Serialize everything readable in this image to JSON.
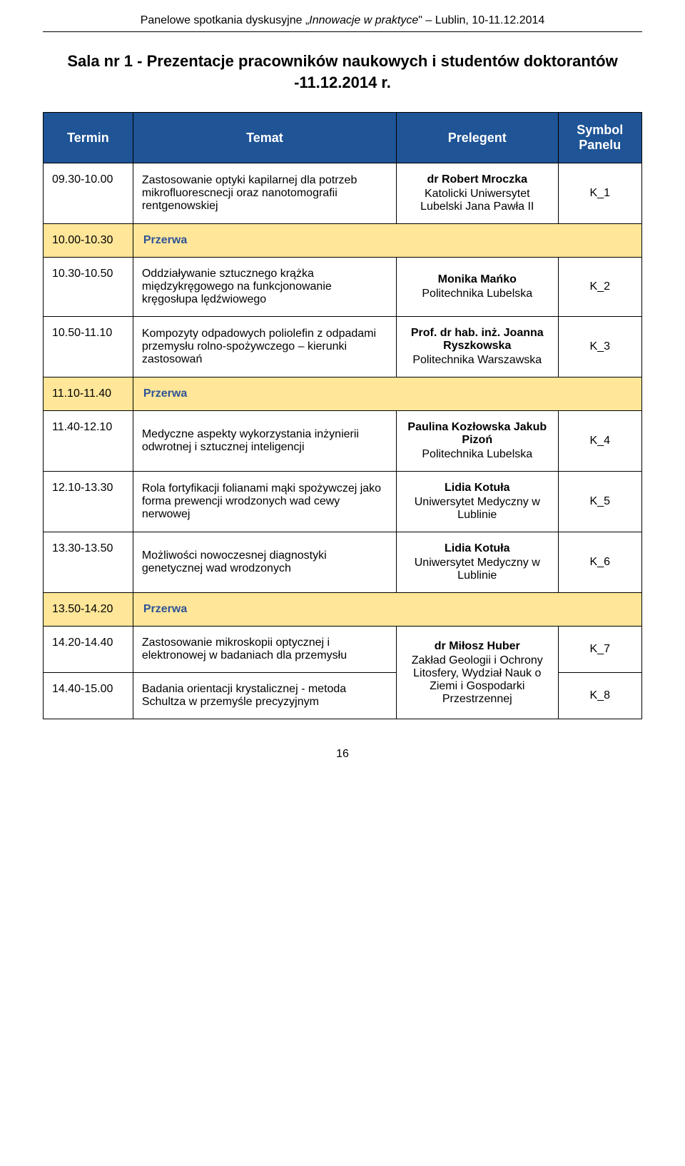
{
  "header": {
    "prefix": "Panelowe spotkania dyskusyjne „",
    "italic": "Innowacje w praktyce",
    "suffix": "\" – Lublin, 10-11.12.2014"
  },
  "title_line1": "Sala nr 1 - Prezentacje pracowników naukowych i studentów doktorantów",
  "title_line2": "-11.12.2014 r.",
  "columns": {
    "termin": "Termin",
    "temat": "Temat",
    "prelegent": "Prelegent",
    "symbol_line1": "Symbol",
    "symbol_line2": "Panelu"
  },
  "break_label": "Przerwa",
  "rows": [
    {
      "time": "09.30-10.00",
      "topic": "Zastosowanie optyki kapilarnej dla potrzeb mikrofluorescnecji oraz nanotomografii rentgenowskiej",
      "presenter_name": "dr Robert Mroczka",
      "presenter_affil": "Katolicki Uniwersytet Lubelski Jana Pawła II",
      "symbol": "K_1"
    },
    {
      "time": "10.00-10.30",
      "break": true
    },
    {
      "time": "10.30-10.50",
      "topic": "Oddziaływanie sztucznego krążka międzykręgowego na funkcjonowanie kręgosłupa lędźwiowego",
      "presenter_name": "Monika Mańko",
      "presenter_affil": "Politechnika Lubelska",
      "symbol": "K_2"
    },
    {
      "time": "10.50-11.10",
      "topic": "Kompozyty odpadowych poliolefin z odpadami przemysłu rolno-spożywczego – kierunki zastosowań",
      "presenter_name": "Prof. dr hab. inż. Joanna Ryszkowska",
      "presenter_affil": "Politechnika Warszawska",
      "symbol": "K_3"
    },
    {
      "time": "11.10-11.40",
      "break": true
    },
    {
      "time": "11.40-12.10",
      "topic": "Medyczne aspekty wykorzystania inżynierii odwrotnej i sztucznej inteligencji",
      "presenter_name": "Paulina Kozłowska Jakub Pizoń",
      "presenter_affil": "Politechnika Lubelska",
      "symbol": "K_4"
    },
    {
      "time": "12.10-13.30",
      "topic": "Rola fortyfikacji folianami mąki spożywczej jako forma prewencji wrodzonych wad cewy nerwowej",
      "presenter_name": "Lidia Kotuła",
      "presenter_affil": "Uniwersytet Medyczny w Lublinie",
      "symbol": "K_5"
    },
    {
      "time": "13.30-13.50",
      "topic": "Możliwości nowoczesnej diagnostyki genetycznej wad wrodzonych",
      "presenter_name": "Lidia Kotuła",
      "presenter_affil": "Uniwersytet Medyczny w Lublinie",
      "symbol": "K_6"
    },
    {
      "time": "13.50-14.20",
      "break": true
    },
    {
      "time": "14.20-14.40",
      "topic": "Zastosowanie mikroskopii optycznej i elektronowej w badaniach dla przemysłu",
      "symbol": "K_7",
      "shared_presenter_top": true
    },
    {
      "time": "14.40-15.00",
      "topic": "Badania orientacji krystalicznej - metoda Schultza w przemyśle precyzyjnym",
      "symbol": "K_8",
      "shared_presenter_bottom": true
    }
  ],
  "shared_presenter": {
    "name": "dr Miłosz Huber",
    "affil": "Zakład Geologii i Ochrony Litosfery, Wydział Nauk o Ziemi i Gospodarki Przestrzennej"
  },
  "page_number": "16",
  "styling": {
    "header_bg": "#1f5496",
    "header_text": "#ffffff",
    "break_bg": "#ffe699",
    "break_text": "#2f5496",
    "font_body": 16,
    "font_title": 22,
    "font_header_row": 18
  }
}
